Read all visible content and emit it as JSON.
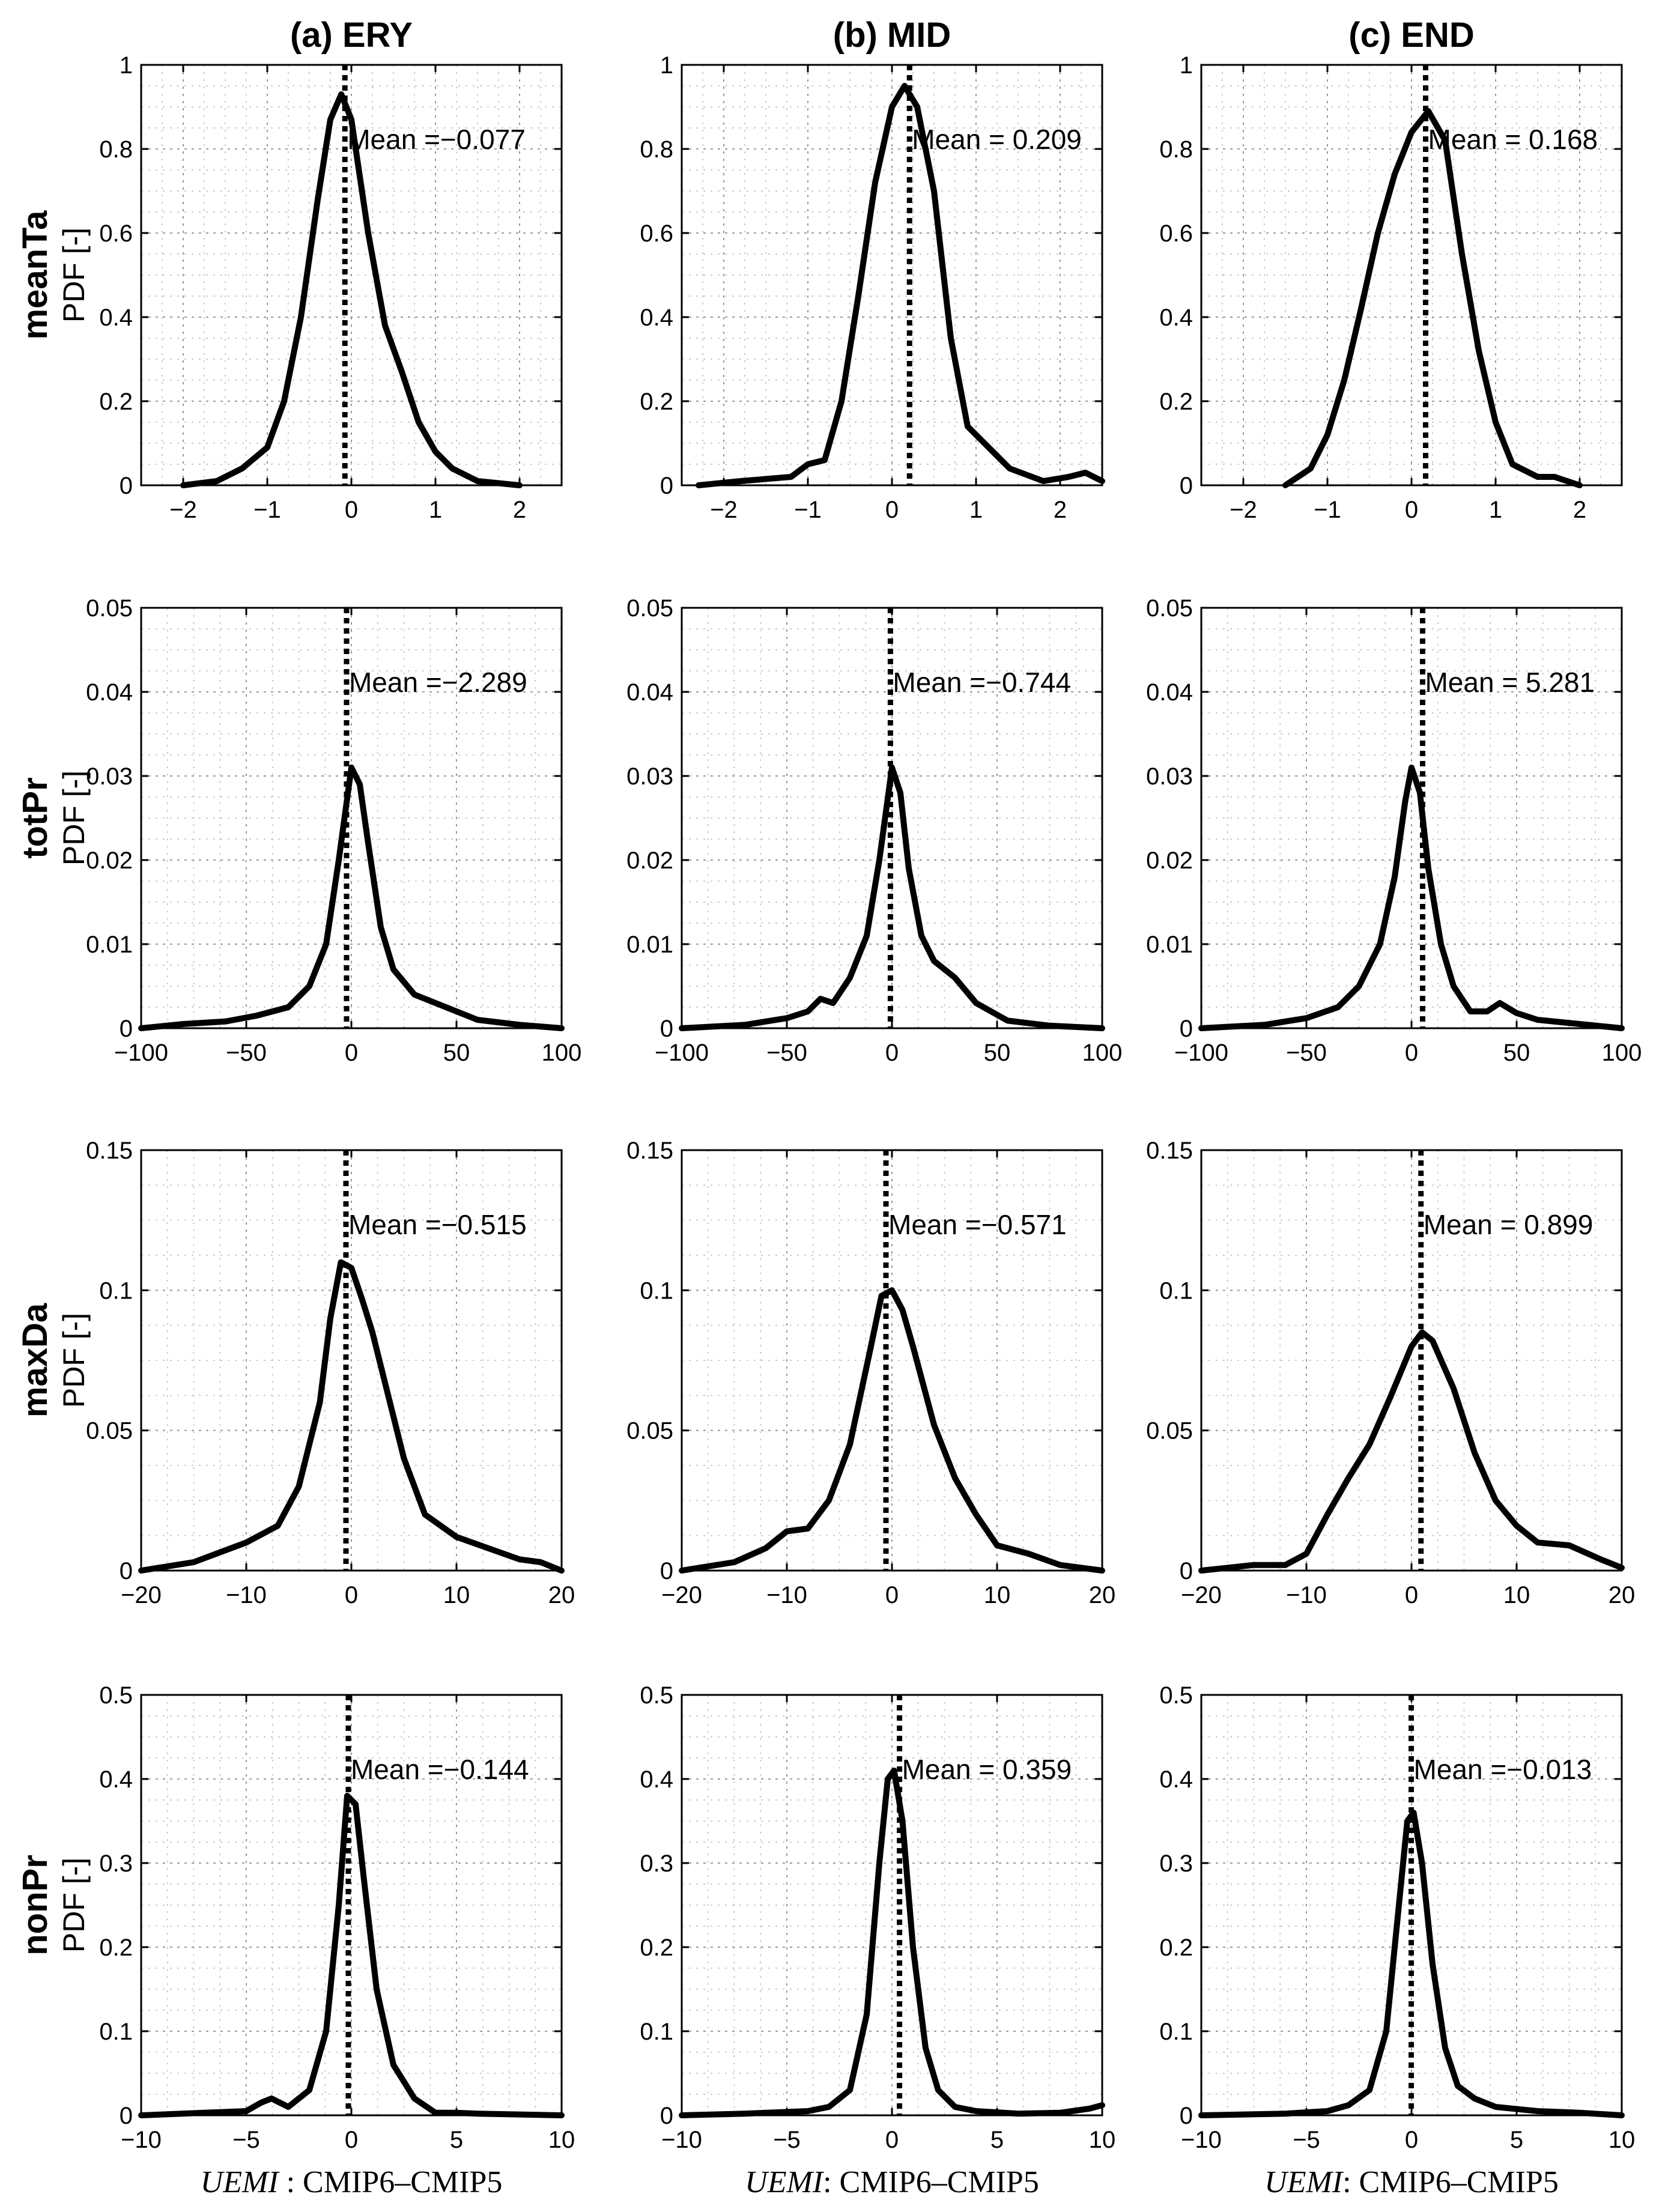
{
  "chart_data": {
    "type": "line",
    "grid": true,
    "columns": [
      "(a) ERY",
      "(b) MID",
      "(c) END"
    ],
    "row_variables": [
      "meanTa",
      "totPr",
      "maxDa",
      "nonPr"
    ],
    "ylabel": "PDF [-]",
    "xlabels": [
      {
        "italic": "UEMI",
        "rest": " : CMIP6–CMIP5"
      },
      {
        "italic": "UEMI",
        "rest": ": CMIP6–CMIP5"
      },
      {
        "italic": "UEMI",
        "rest": ": CMIP6–CMIP5"
      }
    ],
    "panels": [
      {
        "variable": "meanTa",
        "column": "(a) ERY",
        "xlim": [
          -2.5,
          2.5
        ],
        "ylim": [
          0,
          1
        ],
        "xticks": [
          -2,
          -1,
          0,
          1,
          2
        ],
        "yticks": [
          0,
          0.2,
          0.4,
          0.6,
          0.8,
          1
        ],
        "mean_value": -0.077,
        "mean_label": "Mean =−0.077",
        "series": {
          "x": [
            -2.0,
            -1.6,
            -1.3,
            -1.0,
            -0.8,
            -0.6,
            -0.4,
            -0.25,
            -0.12,
            0.0,
            0.2,
            0.4,
            0.6,
            0.8,
            1.0,
            1.2,
            1.5,
            2.0
          ],
          "y": [
            0.0,
            0.01,
            0.04,
            0.09,
            0.2,
            0.4,
            0.68,
            0.87,
            0.93,
            0.87,
            0.6,
            0.38,
            0.27,
            0.15,
            0.08,
            0.04,
            0.01,
            0.0
          ]
        }
      },
      {
        "variable": "meanTa",
        "column": "(b) MID",
        "xlim": [
          -2.5,
          2.5
        ],
        "ylim": [
          0,
          1
        ],
        "xticks": [
          -2,
          -1,
          0,
          1,
          2
        ],
        "yticks": [
          0,
          0.2,
          0.4,
          0.6,
          0.8,
          1
        ],
        "mean_value": 0.209,
        "mean_label": "Mean = 0.209",
        "series": {
          "x": [
            -2.3,
            -1.8,
            -1.2,
            -1.0,
            -0.8,
            -0.6,
            -0.4,
            -0.2,
            0.0,
            0.15,
            0.3,
            0.5,
            0.7,
            0.9,
            1.1,
            1.4,
            1.8,
            2.1,
            2.3,
            2.5
          ],
          "y": [
            0.0,
            0.01,
            0.02,
            0.05,
            0.06,
            0.2,
            0.45,
            0.72,
            0.9,
            0.95,
            0.9,
            0.7,
            0.35,
            0.14,
            0.1,
            0.04,
            0.01,
            0.02,
            0.03,
            0.01
          ]
        }
      },
      {
        "variable": "meanTa",
        "column": "(c) END",
        "xlim": [
          -2.5,
          2.5
        ],
        "ylim": [
          0,
          1
        ],
        "xticks": [
          -2,
          -1,
          0,
          1,
          2
        ],
        "yticks": [
          0,
          0.2,
          0.4,
          0.6,
          0.8,
          1
        ],
        "mean_value": 0.168,
        "mean_label": "Mean = 0.168",
        "series": {
          "x": [
            -1.5,
            -1.2,
            -1.0,
            -0.8,
            -0.6,
            -0.4,
            -0.2,
            0.0,
            0.2,
            0.4,
            0.6,
            0.8,
            1.0,
            1.2,
            1.5,
            1.7,
            2.0
          ],
          "y": [
            0.0,
            0.04,
            0.12,
            0.25,
            0.42,
            0.6,
            0.74,
            0.84,
            0.89,
            0.82,
            0.55,
            0.32,
            0.15,
            0.05,
            0.02,
            0.02,
            0.0
          ]
        }
      },
      {
        "variable": "totPr",
        "column": "(a) ERY",
        "xlim": [
          -100,
          100
        ],
        "ylim": [
          0,
          0.05
        ],
        "xticks": [
          -100,
          -50,
          0,
          50,
          100
        ],
        "yticks": [
          0,
          0.01,
          0.02,
          0.03,
          0.04,
          0.05
        ],
        "mean_value": -2.289,
        "mean_label": "Mean =−2.289",
        "series": {
          "x": [
            -100,
            -80,
            -60,
            -45,
            -30,
            -20,
            -12,
            -6,
            0,
            4,
            8,
            14,
            20,
            30,
            45,
            60,
            80,
            100
          ],
          "y": [
            0.0,
            0.0005,
            0.0008,
            0.0015,
            0.0025,
            0.005,
            0.01,
            0.02,
            0.031,
            0.029,
            0.022,
            0.012,
            0.007,
            0.004,
            0.0025,
            0.001,
            0.0004,
            0.0
          ]
        }
      },
      {
        "variable": "totPr",
        "column": "(b) MID",
        "xlim": [
          -100,
          100
        ],
        "ylim": [
          0,
          0.05
        ],
        "xticks": [
          -100,
          -50,
          0,
          50,
          100
        ],
        "yticks": [
          0,
          0.01,
          0.02,
          0.03,
          0.04,
          0.05
        ],
        "mean_value": -0.744,
        "mean_label": "Mean =−0.744",
        "series": {
          "x": [
            -100,
            -70,
            -50,
            -40,
            -34,
            -28,
            -20,
            -12,
            -6,
            0,
            4,
            8,
            14,
            20,
            30,
            40,
            55,
            75,
            100
          ],
          "y": [
            0.0,
            0.0004,
            0.0012,
            0.002,
            0.0035,
            0.003,
            0.006,
            0.011,
            0.02,
            0.031,
            0.028,
            0.019,
            0.011,
            0.008,
            0.006,
            0.003,
            0.0009,
            0.0003,
            0.0
          ]
        }
      },
      {
        "variable": "totPr",
        "column": "(c) END",
        "xlim": [
          -100,
          100
        ],
        "ylim": [
          0,
          0.05
        ],
        "xticks": [
          -100,
          -50,
          0,
          50,
          100
        ],
        "yticks": [
          0,
          0.01,
          0.02,
          0.03,
          0.04,
          0.05
        ],
        "mean_value": 5.281,
        "mean_label": "Mean = 5.281",
        "series": {
          "x": [
            -100,
            -70,
            -50,
            -35,
            -25,
            -15,
            -8,
            -3,
            0,
            4,
            8,
            14,
            20,
            28,
            36,
            42,
            50,
            60,
            80,
            100
          ],
          "y": [
            0.0,
            0.0004,
            0.0012,
            0.0025,
            0.005,
            0.01,
            0.018,
            0.027,
            0.031,
            0.028,
            0.019,
            0.01,
            0.005,
            0.002,
            0.002,
            0.003,
            0.0018,
            0.001,
            0.0005,
            0.0
          ]
        }
      },
      {
        "variable": "maxDa",
        "column": "(a) ERY",
        "xlim": [
          -20,
          20
        ],
        "ylim": [
          0,
          0.15
        ],
        "xticks": [
          -20,
          -10,
          0,
          10,
          20
        ],
        "yticks": [
          0,
          0.05,
          0.1,
          0.15
        ],
        "mean_value": -0.515,
        "mean_label": "Mean =−0.515",
        "series": {
          "x": [
            -20,
            -15,
            -10,
            -7,
            -5,
            -3,
            -2,
            -1,
            0,
            1,
            2,
            3,
            5,
            7,
            10,
            13,
            16,
            18,
            20
          ],
          "y": [
            0.0,
            0.003,
            0.01,
            0.016,
            0.03,
            0.06,
            0.09,
            0.11,
            0.108,
            0.097,
            0.085,
            0.07,
            0.04,
            0.02,
            0.012,
            0.008,
            0.004,
            0.003,
            0.0
          ]
        }
      },
      {
        "variable": "maxDa",
        "column": "(b) MID",
        "xlim": [
          -20,
          20
        ],
        "ylim": [
          0,
          0.15
        ],
        "xticks": [
          -20,
          -10,
          0,
          10,
          20
        ],
        "yticks": [
          0,
          0.05,
          0.1,
          0.15
        ],
        "mean_value": -0.571,
        "mean_label": "Mean =−0.571",
        "series": {
          "x": [
            -20,
            -15,
            -12,
            -10,
            -8,
            -6,
            -4,
            -2,
            -1,
            0,
            1,
            2,
            4,
            6,
            8,
            10,
            13,
            16,
            20
          ],
          "y": [
            0.0,
            0.003,
            0.008,
            0.014,
            0.015,
            0.025,
            0.045,
            0.08,
            0.098,
            0.1,
            0.093,
            0.08,
            0.052,
            0.033,
            0.02,
            0.009,
            0.006,
            0.002,
            0.0
          ]
        }
      },
      {
        "variable": "maxDa",
        "column": "(c) END",
        "xlim": [
          -20,
          20
        ],
        "ylim": [
          0,
          0.15
        ],
        "xticks": [
          -20,
          -10,
          0,
          10,
          20
        ],
        "yticks": [
          0,
          0.05,
          0.1,
          0.15
        ],
        "mean_value": 0.899,
        "mean_label": "Mean = 0.899",
        "series": {
          "x": [
            -20,
            -15,
            -12,
            -10,
            -8,
            -6,
            -4,
            -2,
            0,
            1,
            2,
            4,
            6,
            8,
            10,
            12,
            15,
            18,
            20
          ],
          "y": [
            0.0,
            0.002,
            0.002,
            0.006,
            0.02,
            0.033,
            0.045,
            0.062,
            0.08,
            0.085,
            0.082,
            0.065,
            0.042,
            0.025,
            0.016,
            0.01,
            0.009,
            0.004,
            0.001
          ]
        }
      },
      {
        "variable": "nonPr",
        "column": "(a) ERY",
        "xlim": [
          -10,
          10
        ],
        "ylim": [
          0,
          0.5
        ],
        "xticks": [
          -10,
          -5,
          0,
          5,
          10
        ],
        "yticks": [
          0,
          0.1,
          0.2,
          0.3,
          0.4,
          0.5
        ],
        "mean_value": -0.144,
        "mean_label": "Mean =−0.144",
        "series": {
          "x": [
            -10,
            -7,
            -5,
            -4.3,
            -3.8,
            -3,
            -2,
            -1.2,
            -0.6,
            -0.2,
            0.2,
            0.6,
            1.2,
            2,
            3,
            4,
            5,
            6,
            8,
            10
          ],
          "y": [
            0.0,
            0.003,
            0.005,
            0.015,
            0.02,
            0.01,
            0.03,
            0.1,
            0.25,
            0.38,
            0.37,
            0.28,
            0.15,
            0.06,
            0.02,
            0.003,
            0.003,
            0.002,
            0.001,
            0.0
          ]
        }
      },
      {
        "variable": "nonPr",
        "column": "(b) MID",
        "xlim": [
          -10,
          10
        ],
        "ylim": [
          0,
          0.5
        ],
        "xticks": [
          -10,
          -5,
          0,
          5,
          10
        ],
        "yticks": [
          0,
          0.1,
          0.2,
          0.3,
          0.4,
          0.5
        ],
        "mean_value": 0.359,
        "mean_label": "Mean = 0.359",
        "series": {
          "x": [
            -10,
            -7,
            -4,
            -3,
            -2,
            -1.2,
            -0.6,
            -0.2,
            0.1,
            0.5,
            1,
            1.6,
            2.2,
            3,
            4,
            6,
            8,
            9.4,
            10
          ],
          "y": [
            0.0,
            0.002,
            0.005,
            0.01,
            0.03,
            0.12,
            0.3,
            0.4,
            0.41,
            0.35,
            0.2,
            0.08,
            0.03,
            0.01,
            0.005,
            0.002,
            0.003,
            0.008,
            0.012
          ]
        }
      },
      {
        "variable": "nonPr",
        "column": "(c) END",
        "xlim": [
          -10,
          10
        ],
        "ylim": [
          0,
          0.5
        ],
        "xticks": [
          -10,
          -5,
          0,
          5,
          10
        ],
        "yticks": [
          0,
          0.1,
          0.2,
          0.3,
          0.4,
          0.5
        ],
        "mean_value": -0.013,
        "mean_label": "Mean =−0.013",
        "series": {
          "x": [
            -10,
            -6,
            -4,
            -3,
            -2,
            -1.2,
            -0.6,
            -0.2,
            0.1,
            0.5,
            1,
            1.6,
            2.2,
            3,
            4,
            6,
            8,
            10
          ],
          "y": [
            0.0,
            0.002,
            0.005,
            0.012,
            0.03,
            0.1,
            0.25,
            0.35,
            0.36,
            0.3,
            0.18,
            0.08,
            0.035,
            0.02,
            0.01,
            0.005,
            0.003,
            0.0
          ]
        }
      }
    ]
  }
}
